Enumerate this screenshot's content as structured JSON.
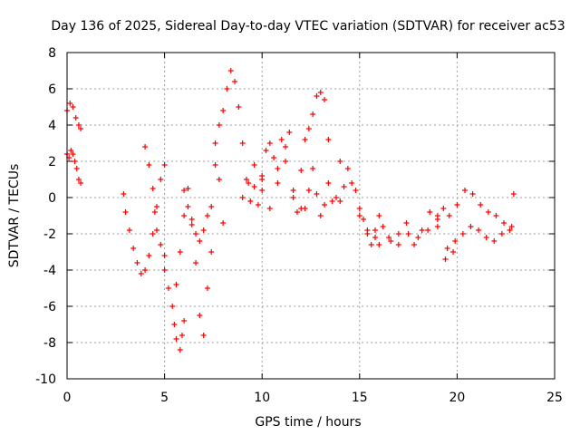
{
  "chart_data": {
    "type": "scatter",
    "title": "Day 136 of 2025, Sidereal Day-to-day VTEC variation (SDTVAR) for receiver ac53",
    "xlabel": "GPS time / hours",
    "ylabel": "SDTVAR / TECUs",
    "xlim": [
      0,
      25
    ],
    "ylim": [
      -10,
      8
    ],
    "xticks": [
      0,
      5,
      10,
      15,
      20,
      25
    ],
    "yticks": [
      -10,
      -8,
      -6,
      -4,
      -2,
      0,
      2,
      4,
      6,
      8
    ],
    "grid": true,
    "marker": "+",
    "color": "#ff0000",
    "series": [
      {
        "name": "SDTVAR",
        "x": [
          0.0,
          0.15,
          0.3,
          0.45,
          0.6,
          0.7,
          0.0,
          0.1,
          0.2,
          0.3,
          0.4,
          0.5,
          0.6,
          0.7,
          2.9,
          3.0,
          3.2,
          3.4,
          3.6,
          3.8,
          4.0,
          4.2,
          4.4,
          4.6,
          4.8,
          5.0,
          4.0,
          4.2,
          4.4,
          4.5,
          4.6,
          4.8,
          5.0,
          5.0,
          5.2,
          5.4,
          5.5,
          5.6,
          5.8,
          5.9,
          6.0,
          5.6,
          5.8,
          6.0,
          6.2,
          6.4,
          6.6,
          6.8,
          7.0,
          7.2,
          7.4,
          6.0,
          6.2,
          6.4,
          6.6,
          6.8,
          7.0,
          7.2,
          7.4,
          7.6,
          7.8,
          8.0,
          7.6,
          7.8,
          8.0,
          8.2,
          8.4,
          8.6,
          8.8,
          9.0,
          9.2,
          9.4,
          9.6,
          9.8,
          10.0,
          10.0,
          10.2,
          10.4,
          10.6,
          10.8,
          11.0,
          11.2,
          11.4,
          11.6,
          11.8,
          12.0,
          9.0,
          9.3,
          9.6,
          10.0,
          10.4,
          10.8,
          11.2,
          11.6,
          12.0,
          12.2,
          12.4,
          12.6,
          12.8,
          13.0,
          13.2,
          13.4,
          12.2,
          12.4,
          12.6,
          12.8,
          13.0,
          13.2,
          13.4,
          13.6,
          13.8,
          14.0,
          14.0,
          14.2,
          14.4,
          14.6,
          14.8,
          15.0,
          15.2,
          15.4,
          15.6,
          15.8,
          16.0,
          15.0,
          15.4,
          15.8,
          16.2,
          16.6,
          17.0,
          17.4,
          17.8,
          18.2,
          18.6,
          19.0,
          16.0,
          16.5,
          17.0,
          17.5,
          18.0,
          18.5,
          19.0,
          19.4,
          19.8,
          19.0,
          19.3,
          19.6,
          20.0,
          20.4,
          20.8,
          21.2,
          21.6,
          22.0,
          22.4,
          22.8,
          19.5,
          19.9,
          20.3,
          20.7,
          21.1,
          21.5,
          21.9,
          22.3,
          22.7,
          22.9
        ],
        "y": [
          4.8,
          5.2,
          5.0,
          4.4,
          4.0,
          3.8,
          2.4,
          2.2,
          2.6,
          2.4,
          2.0,
          1.6,
          1.0,
          0.8,
          0.2,
          -0.8,
          -1.8,
          -2.8,
          -3.6,
          -4.2,
          -4.0,
          -3.2,
          -2.0,
          -0.5,
          1.0,
          1.8,
          2.8,
          1.8,
          0.5,
          -0.8,
          -1.8,
          -2.6,
          -3.2,
          -4.0,
          -5.0,
          -6.0,
          -7.0,
          -7.8,
          -8.4,
          -7.6,
          -6.8,
          -4.8,
          -3.0,
          -1.0,
          0.5,
          -1.5,
          -3.6,
          -6.5,
          -7.6,
          -5.0,
          -3.0,
          0.4,
          -0.5,
          -1.2,
          -2.0,
          -2.4,
          -1.8,
          -1.0,
          -0.5,
          1.8,
          1.0,
          -1.4,
          3.0,
          4.0,
          4.8,
          6.0,
          7.0,
          6.4,
          5.0,
          3.0,
          1.0,
          -0.2,
          0.6,
          -0.4,
          1.0,
          1.2,
          2.6,
          3.0,
          2.2,
          1.6,
          3.2,
          2.0,
          3.6,
          0.4,
          -0.8,
          1.5,
          0.0,
          0.8,
          1.8,
          0.4,
          -0.6,
          0.8,
          2.8,
          0.0,
          -0.6,
          3.2,
          3.8,
          4.6,
          5.6,
          5.8,
          5.4,
          3.2,
          -0.6,
          0.4,
          1.6,
          0.2,
          -1.0,
          -0.4,
          0.8,
          -0.2,
          0.0,
          2.0,
          -0.2,
          0.6,
          1.6,
          0.8,
          0.4,
          -0.6,
          -1.2,
          -2.0,
          -2.6,
          -1.8,
          -1.0,
          -1.0,
          -1.8,
          -2.2,
          -1.6,
          -2.4,
          -2.0,
          -1.4,
          -2.6,
          -1.8,
          -0.8,
          -1.0,
          -2.6,
          -2.2,
          -2.6,
          -2.0,
          -2.2,
          -1.8,
          -1.2,
          -3.4,
          -3.0,
          -1.6,
          -0.6,
          -1.0,
          -0.4,
          0.4,
          0.2,
          -0.4,
          -0.8,
          -1.0,
          -1.4,
          -1.6,
          -2.8,
          -2.4,
          -2.0,
          -1.6,
          -1.8,
          -2.2,
          -2.4,
          -2.0,
          -1.8,
          0.2
        ]
      }
    ]
  }
}
